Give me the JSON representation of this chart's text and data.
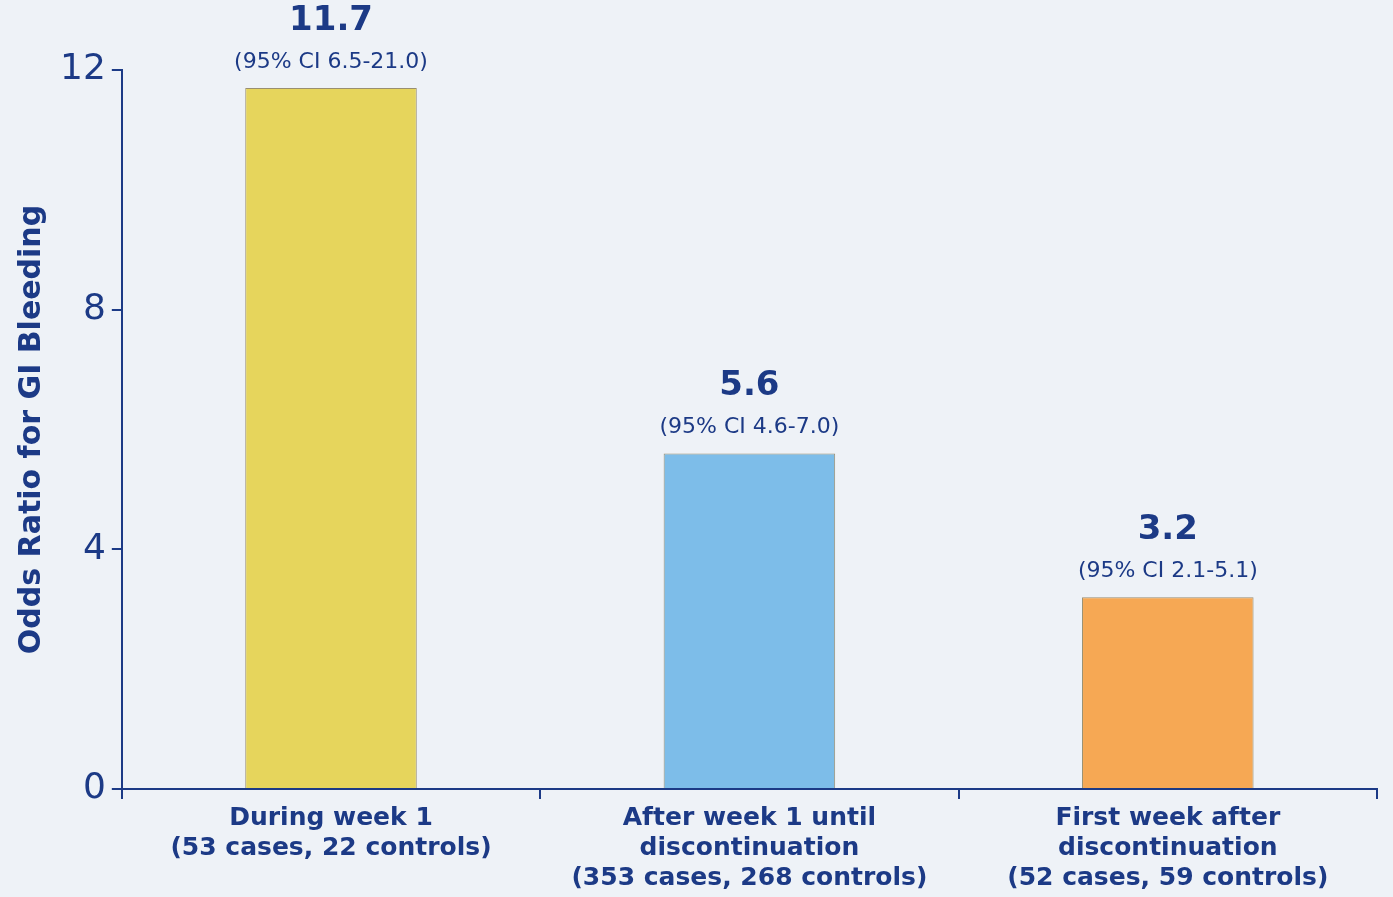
{
  "chart_data": {
    "type": "bar",
    "ylabel": "Odds Ratio for GI Bleeding",
    "categories": [
      "During week 1\n(53 cases, 22 controls)",
      "After week 1 until\ndiscontinuation\n(353 cases, 268 controls)",
      "First week after\ndiscontinuation\n(52 cases, 59 controls)"
    ],
    "values": [
      11.7,
      5.6,
      3.2
    ],
    "colors": [
      "#e6d55c",
      "#7dbde9",
      "#f6a854"
    ],
    "ylim": [
      0,
      12
    ],
    "yticks": [
      0,
      4,
      8,
      12
    ],
    "grid": false,
    "legend": false,
    "data_labels": true,
    "annotations": [
      {
        "text": "(95% CI 6.5-21.0)",
        "x": "During week 1\n(53 cases, 22 controls)",
        "y": 11.7
      },
      {
        "text": "(95% CI 4.6-7.0)",
        "x": "After week 1 until\ndiscontinuation\n(353 cases, 268 controls)",
        "y": 5.6
      },
      {
        "text": "(95% CI 2.1-5.1)",
        "x": "First week after\ndiscontinuation\n(52 cases, 59 controls)",
        "y": 3.2
      }
    ]
  }
}
